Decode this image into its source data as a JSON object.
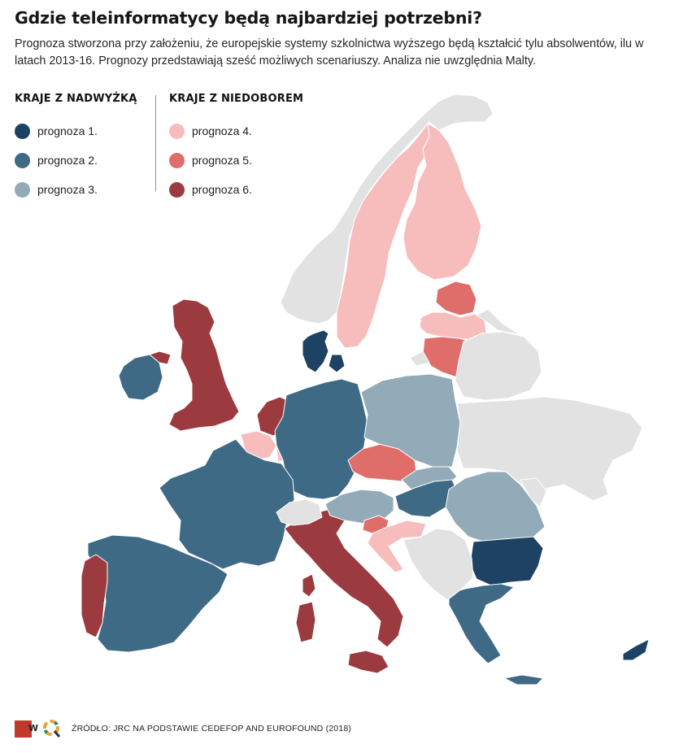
{
  "title": "Gdzie teleinformatycy będą najbardziej potrzebni?",
  "subtitle": "Prognoza stworzona przy założeniu, że europejskie systemy szkolnictwa wyższego będą kształcić tylu absolwentów, ilu w latach 2013-16. Prognozy przedstawiają sześć możliwych scenariuszy. Analiza nie uwzględnia Malty.",
  "legend": {
    "surplus": {
      "heading": "KRAJE Z NADWYŻKĄ",
      "items": [
        {
          "label": "prognoza 1.",
          "color": "#1d4263"
        },
        {
          "label": "prognoza 2.",
          "color": "#3f6a86"
        },
        {
          "label": "prognoza 3.",
          "color": "#93aab8"
        }
      ]
    },
    "shortage": {
      "heading": "KRAJE Z NIEDOBOREM",
      "items": [
        {
          "label": "prognoza 4.",
          "color": "#f7bdbc"
        },
        {
          "label": "prognoza 5.",
          "color": "#df6d6a"
        },
        {
          "label": "prognoza 6.",
          "color": "#9c3b3f"
        }
      ]
    }
  },
  "map": {
    "no_data_color": "#e2e2e2",
    "border_color": "#ffffff",
    "countries": [
      {
        "name": "Norway",
        "scenario": 0
      },
      {
        "name": "Sweden",
        "scenario": 4
      },
      {
        "name": "Finland",
        "scenario": 4
      },
      {
        "name": "Estonia",
        "scenario": 5
      },
      {
        "name": "Latvia",
        "scenario": 4
      },
      {
        "name": "Lithuania",
        "scenario": 5
      },
      {
        "name": "Denmark",
        "scenario": 1
      },
      {
        "name": "Ireland",
        "scenario": 2
      },
      {
        "name": "United Kingdom",
        "scenario": 6
      },
      {
        "name": "Netherlands",
        "scenario": 6
      },
      {
        "name": "Belgium",
        "scenario": 4
      },
      {
        "name": "Luxembourg",
        "scenario": 4
      },
      {
        "name": "Germany",
        "scenario": 2
      },
      {
        "name": "France",
        "scenario": 2
      },
      {
        "name": "Spain",
        "scenario": 2
      },
      {
        "name": "Portugal",
        "scenario": 6
      },
      {
        "name": "Italy",
        "scenario": 6
      },
      {
        "name": "Switzerland",
        "scenario": 0
      },
      {
        "name": "Austria",
        "scenario": 3
      },
      {
        "name": "Czech Republic",
        "scenario": 5
      },
      {
        "name": "Slovakia",
        "scenario": 3
      },
      {
        "name": "Poland",
        "scenario": 3
      },
      {
        "name": "Hungary",
        "scenario": 2
      },
      {
        "name": "Slovenia",
        "scenario": 5
      },
      {
        "name": "Croatia",
        "scenario": 4
      },
      {
        "name": "Romania",
        "scenario": 3
      },
      {
        "name": "Bulgaria",
        "scenario": 1
      },
      {
        "name": "Greece",
        "scenario": 2
      },
      {
        "name": "Cyprus",
        "scenario": 1
      },
      {
        "name": "Belarus",
        "scenario": 0
      },
      {
        "name": "Ukraine",
        "scenario": 0
      },
      {
        "name": "Western Balkans",
        "scenario": 0
      },
      {
        "name": "Moldova",
        "scenario": 0
      },
      {
        "name": "Russia (Kaliningrad)",
        "scenario": 0
      }
    ]
  },
  "footer": {
    "source": "ŹRÓDŁO: JRC NA PODSTAWIE CEDEFOP AND EUROFOUND (2018)",
    "logo_color": "#c0392b"
  }
}
